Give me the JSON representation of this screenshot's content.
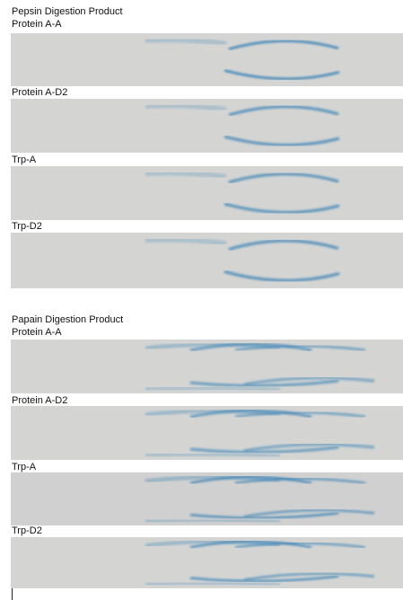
{
  "sections": [
    {
      "title": "Pepsin Digestion Product",
      "panels": [
        "Protein A-A",
        "Protein A-D2",
        "Trp-A",
        "Trp-D2"
      ]
    },
    {
      "title": "Papain Digestion Product",
      "panels": [
        "Protein A-A",
        "Protein A-D2",
        "Trp-A",
        "Trp-D2"
      ]
    }
  ]
}
